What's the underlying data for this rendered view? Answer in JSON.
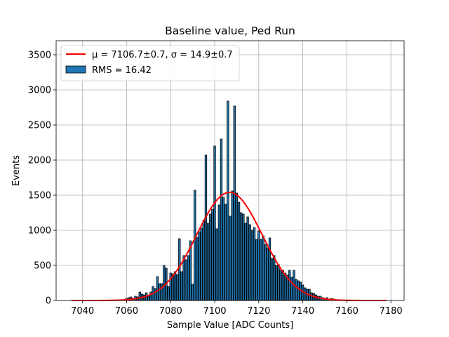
{
  "chart_data": {
    "type": "histogram",
    "title": "Baseline value, Ped Run",
    "xlabel": "Sample Value [ADC Counts]",
    "ylabel": "Events",
    "xlim": [
      7028,
      7186
    ],
    "ylim": [
      0,
      3700
    ],
    "xticks": [
      7040,
      7060,
      7080,
      7100,
      7120,
      7140,
      7160,
      7180
    ],
    "yticks": [
      0,
      500,
      1000,
      1500,
      2000,
      2500,
      3000,
      3500
    ],
    "grid": true,
    "legend_position": "top-left",
    "bin_width": 0.8,
    "colors": {
      "bar_fill": "#1f77b4",
      "bar_edge": "#000000",
      "fit_line": "#ff0000"
    },
    "bins": [
      [
        7060,
        30
      ],
      [
        7061,
        40
      ],
      [
        7062,
        50
      ],
      [
        7063,
        30
      ],
      [
        7064,
        60
      ],
      [
        7065,
        50
      ],
      [
        7066,
        120
      ],
      [
        7067,
        90
      ],
      [
        7068,
        80
      ],
      [
        7069,
        110
      ],
      [
        7070,
        60
      ],
      [
        7071,
        120
      ],
      [
        7072,
        200
      ],
      [
        7073,
        170
      ],
      [
        7074,
        340
      ],
      [
        7075,
        240
      ],
      [
        7076,
        240
      ],
      [
        7077,
        500
      ],
      [
        7078,
        460
      ],
      [
        7079,
        200
      ],
      [
        7080,
        390
      ],
      [
        7081,
        380
      ],
      [
        7082,
        410
      ],
      [
        7083,
        370
      ],
      [
        7084,
        880
      ],
      [
        7085,
        410
      ],
      [
        7086,
        640
      ],
      [
        7087,
        580
      ],
      [
        7088,
        640
      ],
      [
        7089,
        850
      ],
      [
        7090,
        230
      ],
      [
        7091,
        1570
      ],
      [
        7092,
        900
      ],
      [
        7093,
        980
      ],
      [
        7094,
        1030
      ],
      [
        7095,
        1140
      ],
      [
        7096,
        2070
      ],
      [
        7097,
        1100
      ],
      [
        7098,
        1230
      ],
      [
        7099,
        1300
      ],
      [
        7100,
        2200
      ],
      [
        7101,
        1020
      ],
      [
        7102,
        1360
      ],
      [
        7103,
        2300
      ],
      [
        7104,
        1470
      ],
      [
        7105,
        1370
      ],
      [
        7106,
        2840
      ],
      [
        7107,
        1200
      ],
      [
        7108,
        1560
      ],
      [
        7109,
        2770
      ],
      [
        7110,
        1530
      ],
      [
        7111,
        1400
      ],
      [
        7112,
        1250
      ],
      [
        7113,
        1230
      ],
      [
        7114,
        1100
      ],
      [
        7115,
        1190
      ],
      [
        7116,
        1080
      ],
      [
        7117,
        1000
      ],
      [
        7118,
        1040
      ],
      [
        7119,
        870
      ],
      [
        7120,
        990
      ],
      [
        7121,
        870
      ],
      [
        7122,
        920
      ],
      [
        7123,
        800
      ],
      [
        7124,
        750
      ],
      [
        7125,
        890
      ],
      [
        7126,
        600
      ],
      [
        7127,
        640
      ],
      [
        7128,
        500
      ],
      [
        7129,
        510
      ],
      [
        7130,
        430
      ],
      [
        7131,
        430
      ],
      [
        7132,
        390
      ],
      [
        7133,
        360
      ],
      [
        7134,
        430
      ],
      [
        7135,
        330
      ],
      [
        7136,
        430
      ],
      [
        7137,
        300
      ],
      [
        7138,
        280
      ],
      [
        7139,
        260
      ],
      [
        7140,
        220
      ],
      [
        7141,
        180
      ],
      [
        7142,
        160
      ],
      [
        7143,
        160
      ],
      [
        7144,
        110
      ],
      [
        7145,
        100
      ],
      [
        7146,
        80
      ],
      [
        7147,
        60
      ],
      [
        7148,
        60
      ],
      [
        7149,
        40
      ],
      [
        7150,
        30
      ],
      [
        7151,
        40
      ],
      [
        7152,
        20
      ],
      [
        7153,
        30
      ],
      [
        7154,
        20
      ],
      [
        7155,
        10
      ]
    ],
    "fit": {
      "type": "gaussian",
      "mu": 7106.7,
      "sigma": 14.9,
      "amplitude": 1540,
      "x_range": [
        7035,
        7178
      ]
    },
    "legend": {
      "fit_label": "μ = 7106.7±0.7, σ = 14.9±0.7",
      "hist_label": "RMS = 16.42"
    }
  }
}
